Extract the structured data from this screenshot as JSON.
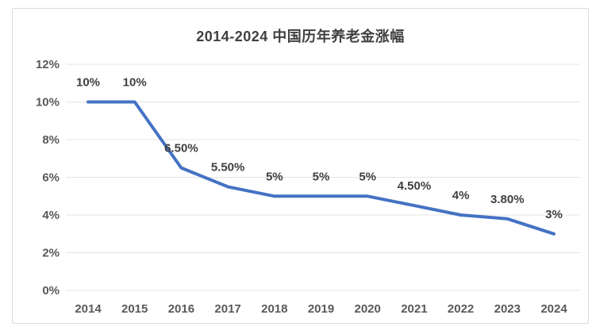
{
  "chart_data": {
    "type": "line",
    "title": "2014-2024 中国历年养老金涨幅",
    "categories": [
      "2014",
      "2015",
      "2016",
      "2017",
      "2018",
      "2019",
      "2020",
      "2021",
      "2022",
      "2023",
      "2024"
    ],
    "values": [
      10,
      10,
      6.5,
      5.5,
      5,
      5,
      5,
      4.5,
      4,
      3.8,
      3
    ],
    "point_labels": [
      "10%",
      "10%",
      "6.50%",
      "5.50%",
      "5%",
      "5%",
      "5%",
      "4.50%",
      "4%",
      "3.80%",
      "3%"
    ],
    "y_tick_labels": [
      "12%",
      "10%",
      "8%",
      "6%",
      "4%",
      "2%",
      "0%"
    ],
    "y_tick_values": [
      12,
      10,
      8,
      6,
      4,
      2,
      0
    ],
    "ylim": [
      0,
      12
    ],
    "xlabel": "",
    "ylabel": "",
    "legend": "none",
    "grid": "horizontal",
    "colors": {
      "line": "#4472C4",
      "grid": "#e4e4e4",
      "axis_text": "#595959",
      "data_label_text": "#404040",
      "title_text": "#404040",
      "border": "#dbdbdb",
      "background": "#ffffff"
    }
  }
}
